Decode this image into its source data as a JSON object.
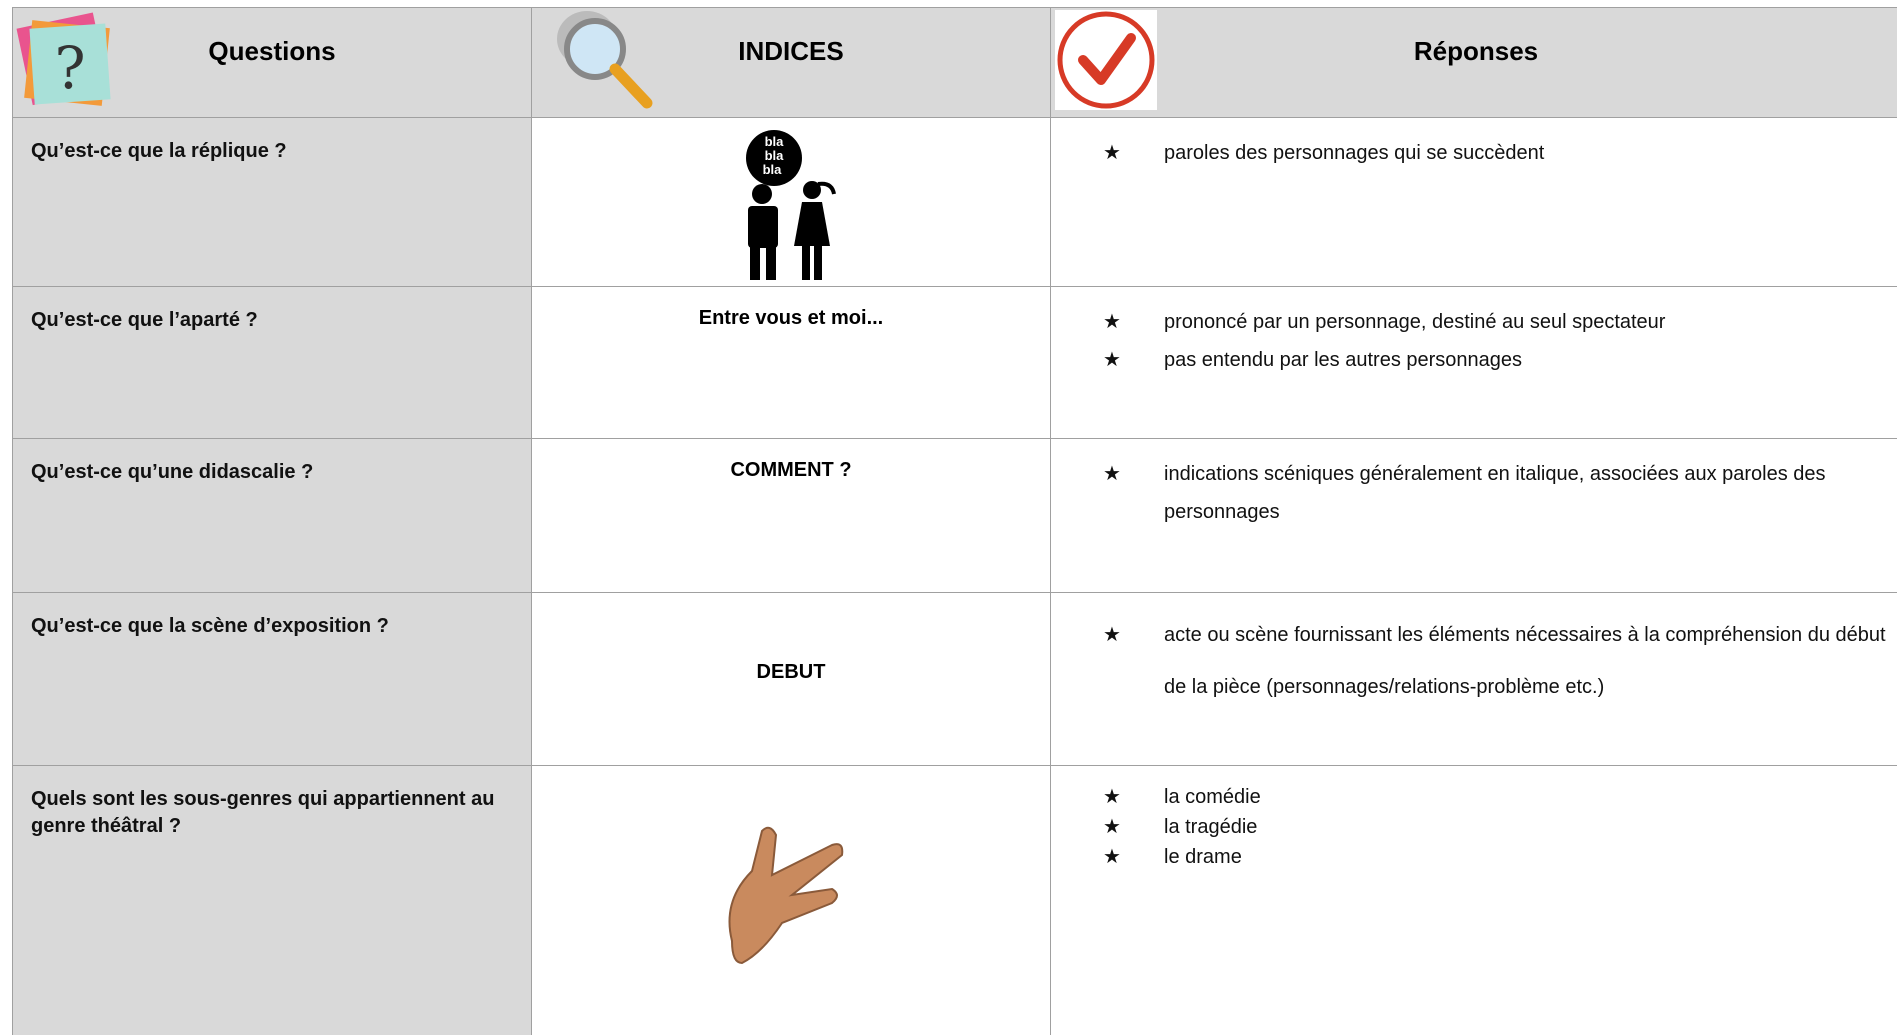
{
  "header": {
    "questions": "Questions",
    "indices": "INDICES",
    "reponses": "Réponses"
  },
  "bullet": "★",
  "rows": [
    {
      "question": "Qu’est-ce que la réplique ?",
      "answers": [
        "paroles des personnages qui se succèdent"
      ]
    },
    {
      "question": "Qu’est-ce que l’aparté ?",
      "hint": "Entre vous et moi...",
      "answers": [
        "prononcé par un personnage, destiné au seul spectateur",
        "pas entendu par les autres personnages"
      ]
    },
    {
      "question": "Qu’est-ce qu’une didascalie ?",
      "hint": "COMMENT ?",
      "answers": [
        "indications scéniques généralement en italique, associées aux paroles des personnages"
      ]
    },
    {
      "question": "Qu’est-ce que la scène d’exposition ?",
      "hint": "DEBUT",
      "answers": [
        "acte ou scène fournissant les éléments nécessaires à la compréhension du début de la pièce (personnages/relations-problème etc.)"
      ]
    },
    {
      "question": "Quels sont les sous-genres qui appartiennent au genre théâtral ?",
      "answers": [
        "la comédie",
        "la tragédie",
        "le drame"
      ]
    }
  ]
}
